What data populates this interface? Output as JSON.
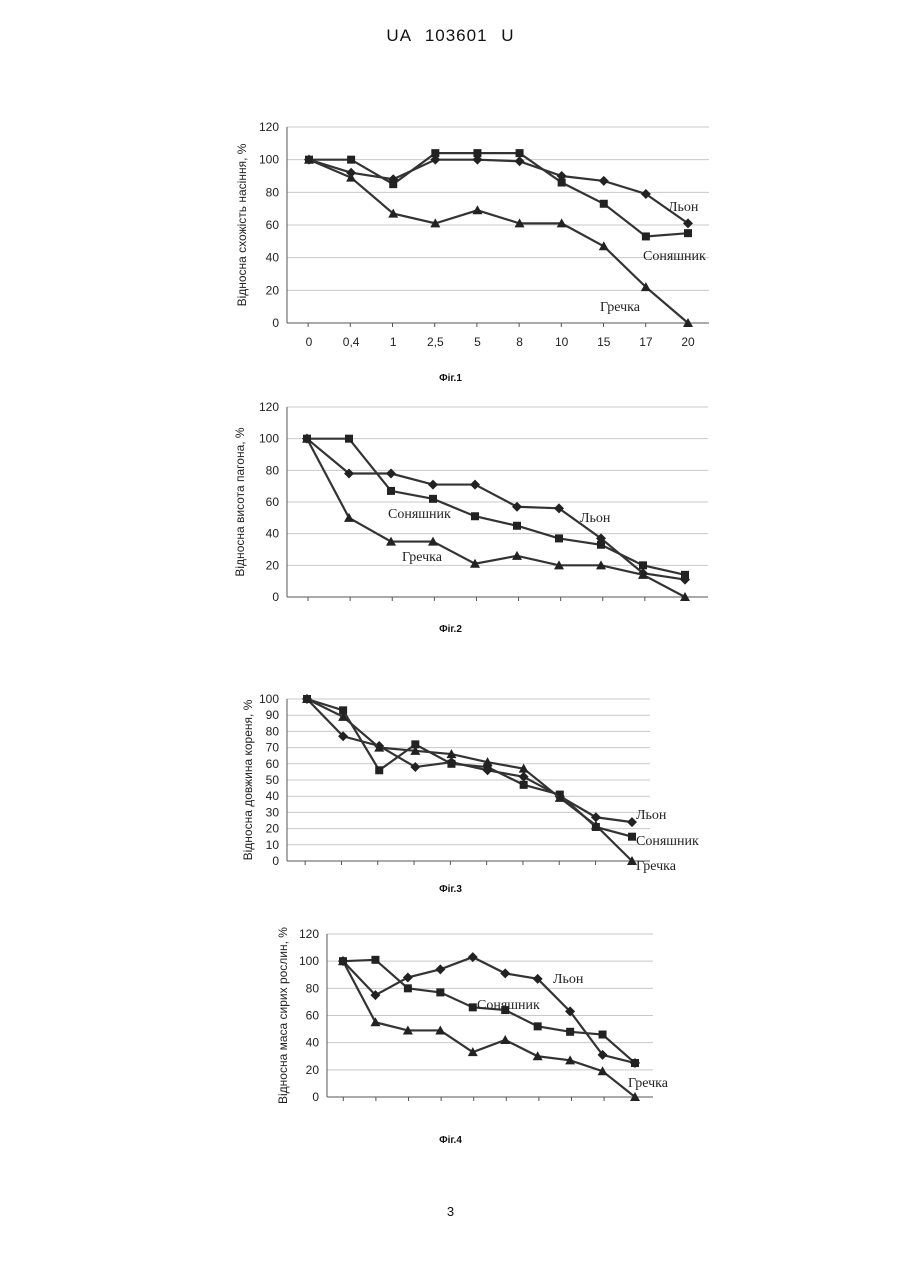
{
  "document": {
    "header": "UA 103601 U",
    "page_number": "3"
  },
  "chart_data": [
    {
      "type": "line",
      "caption": "Фіг.1",
      "ylabel": "Відносна схожість насіння, %",
      "ylim": [
        0,
        120
      ],
      "yticks": [
        "0",
        "20",
        "40",
        "60",
        "80",
        "100",
        "120"
      ],
      "categories": [
        "0",
        "0,4",
        "1",
        "2,5",
        "5",
        "8",
        "10",
        "15",
        "17",
        "20"
      ],
      "grid": true,
      "series": [
        {
          "name": "Льон",
          "marker": "diamond",
          "values": [
            100,
            92,
            88,
            100,
            100,
            99,
            90,
            87,
            79,
            61
          ]
        },
        {
          "name": "Соняшник",
          "marker": "square",
          "values": [
            100,
            100,
            85,
            104,
            104,
            104,
            86,
            73,
            53,
            55
          ]
        },
        {
          "name": "Гречка",
          "marker": "triangle",
          "values": [
            100,
            89,
            67,
            61,
            69,
            61,
            61,
            47,
            22,
            0
          ]
        }
      ]
    },
    {
      "type": "line",
      "caption": "Фіг.2",
      "ylabel": "Відносна висота пагона, %",
      "ylim": [
        0,
        120
      ],
      "yticks": [
        "0",
        "20",
        "40",
        "60",
        "80",
        "100",
        "120"
      ],
      "categories": [
        "",
        "",
        "",
        "",
        "",
        "",
        "",
        "",
        "",
        ""
      ],
      "grid": true,
      "series": [
        {
          "name": "Льон",
          "marker": "diamond",
          "values": [
            100,
            78,
            78,
            71,
            71,
            57,
            56,
            37,
            15,
            11
          ]
        },
        {
          "name": "Соняшник",
          "marker": "square",
          "values": [
            100,
            100,
            67,
            62,
            51,
            45,
            37,
            33,
            20,
            14
          ]
        },
        {
          "name": "Гречка",
          "marker": "triangle",
          "values": [
            100,
            50,
            35,
            35,
            21,
            26,
            20,
            20,
            14,
            0
          ]
        }
      ]
    },
    {
      "type": "line",
      "caption": "Фіг.3",
      "ylabel": "Відносна довжина кореня, %",
      "ylim": [
        0,
        100
      ],
      "yticks": [
        "0",
        "10",
        "20",
        "30",
        "40",
        "50",
        "60",
        "70",
        "80",
        "90",
        "100"
      ],
      "categories": [
        "",
        "",
        "",
        "",
        "",
        "",
        "",
        "",
        "",
        ""
      ],
      "grid": true,
      "series": [
        {
          "name": "Льон",
          "marker": "diamond",
          "values": [
            100,
            77,
            71,
            58,
            61,
            56,
            52,
            40,
            27,
            24
          ]
        },
        {
          "name": "Соняшник",
          "marker": "square",
          "values": [
            100,
            93,
            56,
            72,
            60,
            58,
            47,
            41,
            21,
            15
          ]
        },
        {
          "name": "Гречка",
          "marker": "triangle",
          "values": [
            100,
            89,
            70,
            68,
            66,
            61,
            57,
            39,
            22,
            0
          ]
        }
      ]
    },
    {
      "type": "line",
      "caption": "Фіг.4",
      "ylabel": "Відносна маса сирих рослин, %",
      "ylim": [
        0,
        120
      ],
      "yticks": [
        "0",
        "20",
        "40",
        "60",
        "80",
        "100",
        "120"
      ],
      "categories": [
        "",
        "",
        "",
        "",
        "",
        "",
        "",
        "",
        "",
        ""
      ],
      "grid": true,
      "series": [
        {
          "name": "Льон",
          "marker": "diamond",
          "values": [
            100,
            75,
            88,
            94,
            103,
            91,
            87,
            63,
            31,
            25
          ]
        },
        {
          "name": "Соняшник",
          "marker": "square",
          "values": [
            100,
            101,
            80,
            77,
            66,
            64,
            52,
            48,
            46,
            25
          ]
        },
        {
          "name": "Гречка",
          "marker": "triangle",
          "values": [
            100,
            55,
            49,
            49,
            33,
            42,
            30,
            27,
            19,
            0
          ]
        }
      ]
    }
  ]
}
